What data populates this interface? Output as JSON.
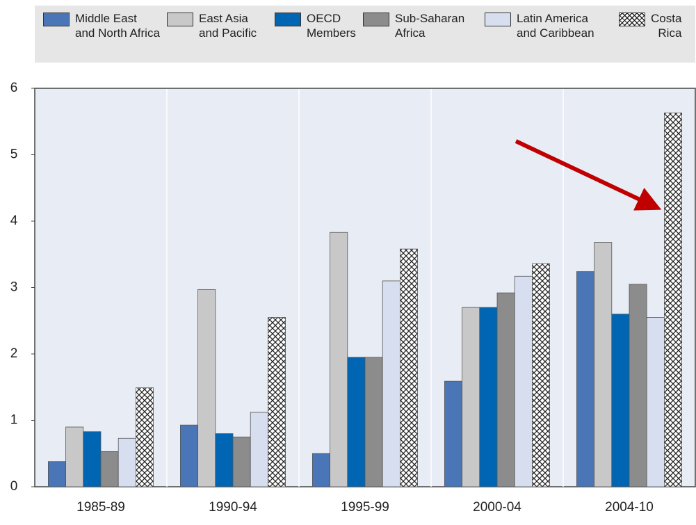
{
  "chart_data": {
    "type": "bar",
    "categories": [
      "1985-89",
      "1990-94",
      "1995-99",
      "2000-04",
      "2004-10"
    ],
    "series": [
      {
        "name": "Middle East\nand North Africa",
        "color": "#4a76b8",
        "values": [
          0.38,
          0.93,
          0.5,
          1.59,
          3.24
        ]
      },
      {
        "name": "East Asia\nand Pacific",
        "color": "#c8c8c8",
        "values": [
          0.9,
          2.97,
          3.83,
          2.7,
          3.68
        ]
      },
      {
        "name": "OECD\nMembers",
        "color": "#0066b3",
        "values": [
          0.83,
          0.8,
          1.95,
          2.7,
          2.6
        ]
      },
      {
        "name": "Sub-Saharan\nAfrica",
        "color": "#8c8c8c",
        "values": [
          0.53,
          0.75,
          1.95,
          2.92,
          3.05
        ]
      },
      {
        "name": "Latin America\nand Caribbean",
        "color": "#d6def0",
        "values": [
          0.73,
          1.12,
          3.1,
          3.17,
          2.55
        ]
      },
      {
        "name": "Costa\nRica",
        "color": "#ffffff",
        "hatch": true,
        "values": [
          1.49,
          2.55,
          3.58,
          3.36,
          5.63
        ]
      }
    ],
    "ylim": [
      0,
      6
    ],
    "yticks": [
      0,
      1,
      2,
      3,
      4,
      5,
      6
    ],
    "legend": "top"
  }
}
